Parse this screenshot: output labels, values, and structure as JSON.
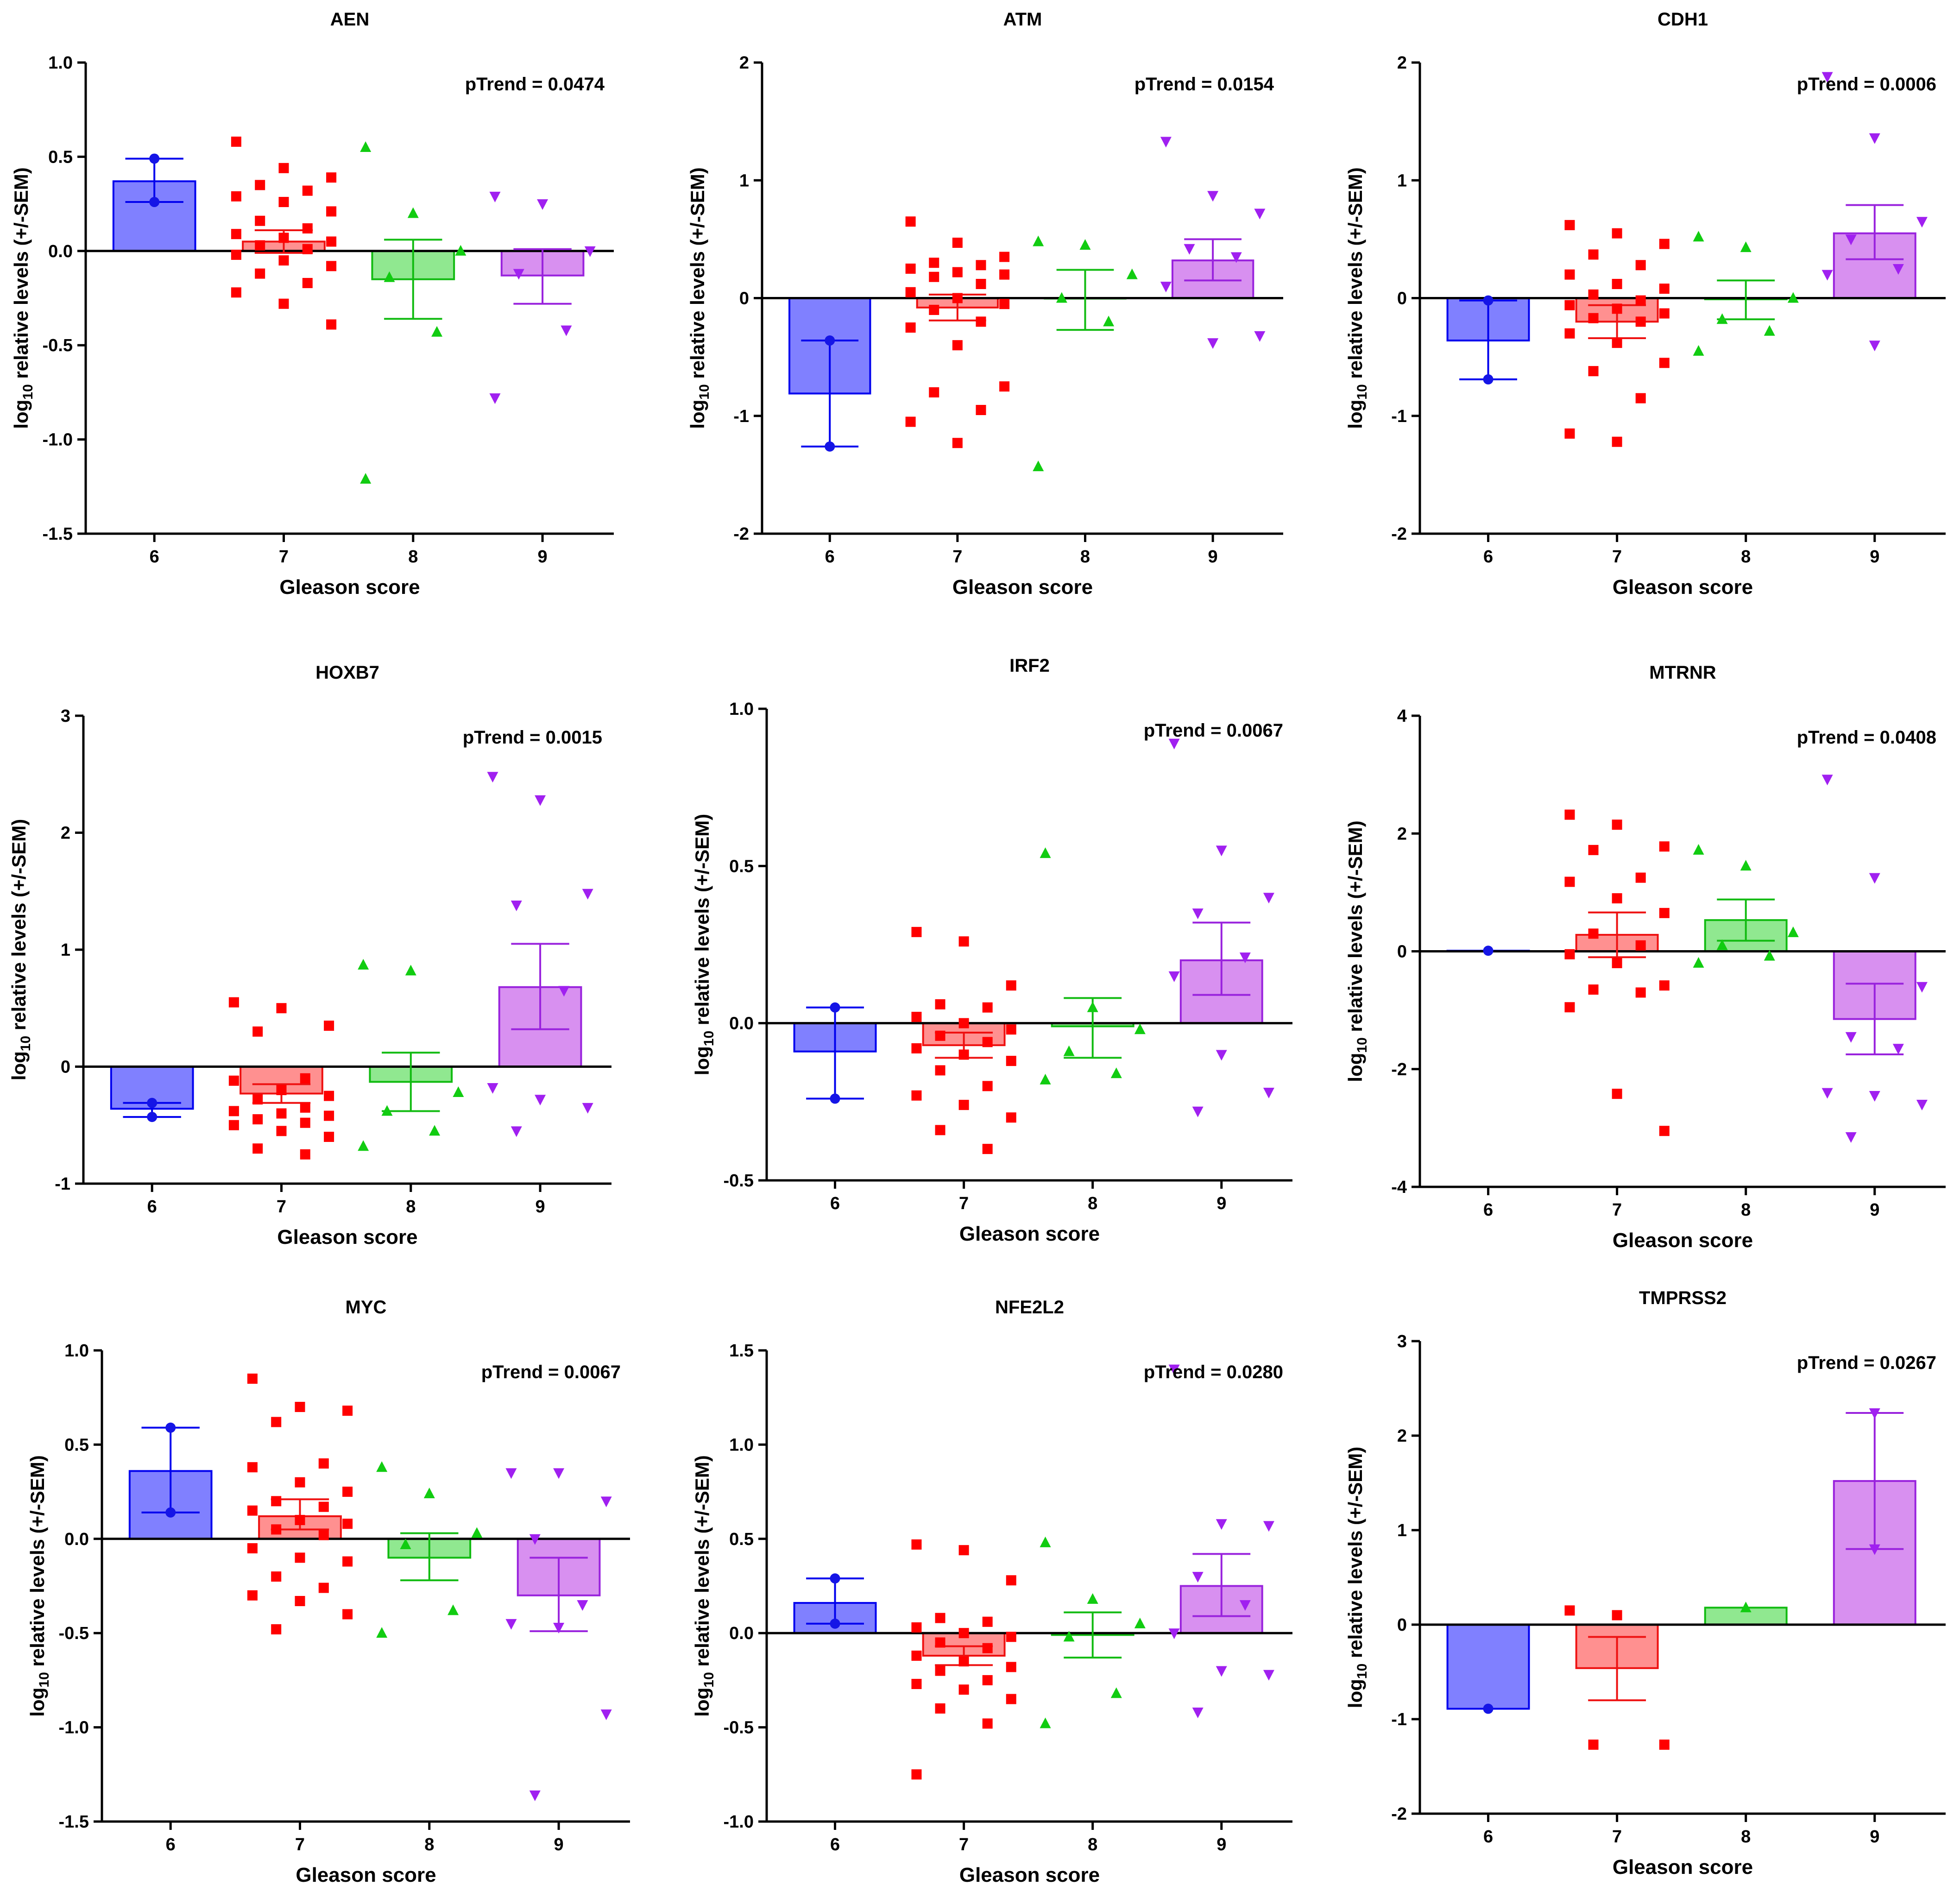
{
  "figure": {
    "layout": "3x3 grid"
  },
  "colors": {
    "6": {
      "bar": "#8080ff",
      "edge": "#0000ee",
      "pt": "#1515e6"
    },
    "7": {
      "bar": "#ff9090",
      "edge": "#ee1111",
      "pt": "#ff0000"
    },
    "8": {
      "bar": "#90e890",
      "edge": "#11bb11",
      "pt": "#11cc11"
    },
    "9": {
      "bar": "#d890f0",
      "edge": "#9922dd",
      "pt": "#a020f0"
    },
    "axis": "#000000"
  },
  "chart_data": [
    {
      "type": "bar",
      "title": "AEN",
      "ptrend": "pTrend = 0.0474",
      "xlabel": "Gleason score",
      "ylabel_main": "log",
      "ylabel_sub": "10",
      "ylabel_rest": " relative levels (+/-SEM)",
      "categories": [
        "6",
        "7",
        "8",
        "9"
      ],
      "ylim": [
        -1.5,
        1.0
      ],
      "yticks": [
        1.0,
        0.5,
        0.0,
        -0.5,
        -1.0,
        -1.5
      ],
      "ytick_labels": [
        "1.0",
        "0.5",
        "0.0",
        "-0.5",
        "-1.0",
        "-1.5"
      ],
      "means": [
        0.37,
        0.05,
        -0.15,
        -0.13
      ],
      "sem_upper": [
        0.49,
        0.11,
        0.06,
        0.01
      ],
      "sem_lower": [
        0.26,
        -0.01,
        -0.36,
        -0.28
      ],
      "points": [
        [
          0.49,
          0.26
        ],
        [
          0.58,
          0.44,
          0.39,
          0.35,
          0.32,
          0.29,
          0.26,
          0.21,
          0.16,
          0.12,
          0.09,
          0.07,
          0.05,
          0.03,
          0.01,
          -0.02,
          -0.05,
          -0.08,
          -0.12,
          -0.17,
          -0.22,
          -0.28,
          -0.39
        ],
        [
          0.55,
          0.2,
          0.0,
          -0.14,
          -0.43,
          -1.21
        ],
        [
          0.29,
          0.25,
          0.0,
          -0.12,
          -0.42,
          -0.78
        ]
      ]
    },
    {
      "type": "bar",
      "title": "ATM",
      "ptrend": "pTrend = 0.0154",
      "xlabel": "Gleason score",
      "ylabel_main": "log",
      "ylabel_sub": "10",
      "ylabel_rest": " relative levels (+/-SEM)",
      "categories": [
        "6",
        "7",
        "8",
        "9"
      ],
      "ylim": [
        -2,
        2
      ],
      "yticks": [
        2,
        1,
        0,
        -1,
        -2
      ],
      "ytick_labels": [
        "2",
        "1",
        "0",
        "-1",
        "-2"
      ],
      "means": [
        -0.81,
        -0.08,
        0.0,
        0.32
      ],
      "sem_upper": [
        -0.36,
        0.03,
        0.24,
        0.5
      ],
      "sem_lower": [
        -1.26,
        -0.19,
        -0.27,
        0.15
      ],
      "points": [
        [
          -0.36,
          -1.26
        ],
        [
          0.65,
          0.47,
          0.35,
          0.3,
          0.28,
          0.25,
          0.22,
          0.2,
          0.18,
          0.12,
          0.05,
          0.0,
          -0.05,
          -0.1,
          -0.2,
          -0.25,
          -0.4,
          -0.75,
          -0.8,
          -0.95,
          -1.05,
          -1.23
        ],
        [
          0.48,
          0.45,
          0.2,
          0.0,
          -0.2,
          -1.43
        ],
        [
          1.33,
          0.87,
          0.72,
          0.42,
          0.35,
          0.1,
          -0.38,
          -0.32
        ]
      ]
    },
    {
      "type": "bar",
      "title": "CDH1",
      "ptrend": "pTrend = 0.0006",
      "xlabel": "Gleason score",
      "ylabel_main": "log",
      "ylabel_sub": "10",
      "ylabel_rest": " relative levels (+/-SEM)",
      "categories": [
        "6",
        "7",
        "8",
        "9"
      ],
      "ylim": [
        -2,
        2
      ],
      "yticks": [
        2,
        1,
        0,
        -1,
        -2
      ],
      "ytick_labels": [
        "2",
        "1",
        "0",
        "-1",
        "-2"
      ],
      "means": [
        -0.36,
        -0.2,
        -0.01,
        0.55
      ],
      "sem_upper": [
        -0.02,
        -0.06,
        0.15,
        0.79
      ],
      "sem_lower": [
        -0.69,
        -0.34,
        -0.18,
        0.33
      ],
      "points": [
        [
          -0.02,
          -0.69
        ],
        [
          0.62,
          0.55,
          0.46,
          0.37,
          0.28,
          0.2,
          0.12,
          0.08,
          0.03,
          -0.02,
          -0.06,
          -0.09,
          -0.13,
          -0.17,
          -0.2,
          -0.3,
          -0.38,
          -0.55,
          -0.62,
          -0.85,
          -1.15,
          -1.22
        ],
        [
          0.52,
          0.43,
          0.0,
          -0.18,
          -0.28,
          -0.45
        ],
        [
          1.88,
          1.36,
          0.65,
          0.5,
          0.25,
          0.2,
          -0.4
        ]
      ]
    },
    {
      "type": "bar",
      "title": "HOXB7",
      "ptrend": "pTrend = 0.0015",
      "xlabel": "Gleason score",
      "ylabel_main": "log",
      "ylabel_sub": "10",
      "ylabel_rest": " relative levels (+/-SEM)",
      "categories": [
        "6",
        "7",
        "8",
        "9"
      ],
      "ylim": [
        -1,
        3
      ],
      "yticks": [
        3,
        2,
        1,
        0,
        -1
      ],
      "ytick_labels": [
        "3",
        "2",
        "1",
        "0",
        "-1"
      ],
      "means": [
        -0.36,
        -0.23,
        -0.13,
        0.68
      ],
      "sem_upper": [
        -0.31,
        -0.15,
        0.12,
        1.05
      ],
      "sem_lower": [
        -0.43,
        -0.31,
        -0.38,
        0.32
      ],
      "points": [
        [
          -0.31,
          -0.43
        ],
        [
          0.55,
          0.5,
          0.35,
          0.3,
          -0.1,
          -0.12,
          -0.2,
          -0.25,
          -0.28,
          -0.35,
          -0.38,
          -0.4,
          -0.42,
          -0.45,
          -0.48,
          -0.5,
          -0.55,
          -0.6,
          -0.7,
          -0.75
        ],
        [
          0.87,
          0.82,
          -0.22,
          -0.38,
          -0.55,
          -0.68
        ],
        [
          2.48,
          2.28,
          1.48,
          1.38,
          0.65,
          -0.18,
          -0.28,
          -0.35,
          -0.55
        ]
      ]
    },
    {
      "type": "bar",
      "title": "IRF2",
      "ptrend": "pTrend = 0.0067",
      "xlabel": "Gleason score",
      "ylabel_main": "log",
      "ylabel_sub": "10",
      "ylabel_rest": " relative levels (+/-SEM)",
      "categories": [
        "6",
        "7",
        "8",
        "9"
      ],
      "ylim": [
        -0.5,
        1.0
      ],
      "yticks": [
        1.0,
        0.5,
        0.0,
        -0.5
      ],
      "ytick_labels": [
        "1.0",
        "0.5",
        "0.0",
        "-0.5"
      ],
      "means": [
        -0.09,
        -0.07,
        -0.01,
        0.2
      ],
      "sem_upper": [
        0.05,
        -0.03,
        0.08,
        0.32
      ],
      "sem_lower": [
        -0.24,
        -0.11,
        -0.11,
        0.09
      ],
      "points": [
        [
          0.05,
          -0.24
        ],
        [
          0.29,
          0.26,
          0.12,
          0.06,
          0.05,
          0.02,
          0.0,
          -0.02,
          -0.04,
          -0.06,
          -0.08,
          -0.1,
          -0.12,
          -0.15,
          -0.2,
          -0.23,
          -0.26,
          -0.3,
          -0.34,
          -0.4
        ],
        [
          0.54,
          0.05,
          -0.02,
          -0.09,
          -0.16,
          -0.18
        ],
        [
          0.89,
          0.55,
          0.4,
          0.35,
          0.21,
          0.15,
          -0.1,
          -0.22,
          -0.28
        ]
      ]
    },
    {
      "type": "bar",
      "title": "MTRNR",
      "ptrend": "pTrend = 0.0408",
      "xlabel": "Gleason score",
      "ylabel_main": "log",
      "ylabel_sub": "10",
      "ylabel_rest": " relative levels (+/-SEM)",
      "categories": [
        "6",
        "7",
        "8",
        "9"
      ],
      "ylim": [
        -4,
        4
      ],
      "yticks": [
        4,
        2,
        0,
        -2,
        -4
      ],
      "ytick_labels": [
        "4",
        "2",
        "0",
        "-2",
        "-4"
      ],
      "means": [
        0.01,
        0.28,
        0.53,
        -1.15
      ],
      "sem_upper": [
        0.01,
        0.66,
        0.88,
        -0.55
      ],
      "sem_lower": [
        0.01,
        -0.1,
        0.18,
        -1.75
      ],
      "points": [
        [
          0.01
        ],
        [
          2.32,
          2.15,
          1.78,
          1.72,
          1.25,
          1.18,
          0.9,
          0.65,
          0.3,
          0.1,
          -0.05,
          -0.2,
          -0.58,
          -0.65,
          -0.7,
          -0.95,
          -2.42,
          -3.05
        ],
        [
          1.72,
          1.45,
          0.32,
          0.1,
          -0.08,
          -0.2
        ],
        [
          2.92,
          1.25,
          -0.6,
          -1.45,
          -1.65,
          -2.4,
          -2.45,
          -2.6,
          -3.15
        ]
      ]
    },
    {
      "type": "bar",
      "title": "MYC",
      "ptrend": "pTrend = 0.0067",
      "xlabel": "Gleason score",
      "ylabel_main": "log",
      "ylabel_sub": "10",
      "ylabel_rest": " relative levels (+/-SEM)",
      "categories": [
        "6",
        "7",
        "8",
        "9"
      ],
      "ylim": [
        -1.5,
        1.0
      ],
      "yticks": [
        1.0,
        0.5,
        0.0,
        -0.5,
        -1.0,
        -1.5
      ],
      "ytick_labels": [
        "1.0",
        "0.5",
        "0.0",
        "-0.5",
        "-1.0",
        "-1.5"
      ],
      "means": [
        0.36,
        0.12,
        -0.1,
        -0.3
      ],
      "sem_upper": [
        0.59,
        0.21,
        0.03,
        -0.1
      ],
      "sem_lower": [
        0.14,
        0.05,
        -0.22,
        -0.49
      ],
      "points": [
        [
          0.59,
          0.14
        ],
        [
          0.85,
          0.7,
          0.68,
          0.62,
          0.4,
          0.38,
          0.3,
          0.25,
          0.2,
          0.17,
          0.15,
          0.1,
          0.08,
          0.05,
          0.02,
          -0.05,
          -0.1,
          -0.12,
          -0.2,
          -0.26,
          -0.3,
          -0.33,
          -0.4,
          -0.48
        ],
        [
          0.38,
          0.24,
          0.03,
          -0.03,
          -0.38,
          -0.5
        ],
        [
          0.35,
          0.35,
          0.2,
          0.0,
          -0.35,
          -0.45,
          -0.47,
          -0.93,
          -1.36
        ]
      ]
    },
    {
      "type": "bar",
      "title": "NFE2L2",
      "ptrend": "pTrend = 0.0280",
      "xlabel": "Gleason score",
      "ylabel_main": "log",
      "ylabel_sub": "10",
      "ylabel_rest": " relative levels (+/-SEM)",
      "categories": [
        "6",
        "7",
        "8",
        "9"
      ],
      "ylim": [
        -1.0,
        1.5
      ],
      "yticks": [
        1.5,
        1.0,
        0.5,
        0.0,
        -0.5,
        -1.0
      ],
      "ytick_labels": [
        "1.5",
        "1.0",
        "0.5",
        "0.0",
        "-0.5",
        "-1.0"
      ],
      "means": [
        0.16,
        -0.12,
        -0.01,
        0.25
      ],
      "sem_upper": [
        0.29,
        -0.07,
        0.11,
        0.42
      ],
      "sem_lower": [
        0.05,
        -0.17,
        -0.13,
        0.09
      ],
      "points": [
        [
          0.29,
          0.05
        ],
        [
          0.47,
          0.44,
          0.28,
          0.08,
          0.06,
          0.03,
          0.0,
          -0.02,
          -0.05,
          -0.08,
          -0.12,
          -0.15,
          -0.18,
          -0.2,
          -0.25,
          -0.27,
          -0.3,
          -0.35,
          -0.4,
          -0.48,
          -0.75
        ],
        [
          0.48,
          0.18,
          0.05,
          -0.02,
          -0.32,
          -0.48
        ],
        [
          1.4,
          0.58,
          0.57,
          0.3,
          0.15,
          0.0,
          -0.2,
          -0.22,
          -0.42
        ]
      ]
    },
    {
      "type": "bar",
      "title": "TMPRSS2",
      "ptrend": "pTrend = 0.0267",
      "xlabel": "Gleason score",
      "ylabel_main": "log",
      "ylabel_sub": "10",
      "ylabel_rest": " relative levels (+/-SEM)",
      "categories": [
        "6",
        "7",
        "8",
        "9"
      ],
      "ylim": [
        -2,
        3
      ],
      "yticks": [
        3,
        2,
        1,
        0,
        -1,
        -2
      ],
      "ytick_labels": [
        "3",
        "2",
        "1",
        "0",
        "-1",
        "-2"
      ],
      "means": [
        -0.89,
        -0.46,
        0.18,
        1.52
      ],
      "sem_upper": [
        -0.89,
        -0.13,
        0.18,
        2.24
      ],
      "sem_lower": [
        -0.89,
        -0.8,
        0.18,
        0.8
      ],
      "points": [
        [
          -0.89
        ],
        [
          0.15,
          0.1,
          -1.27,
          -1.27
        ],
        [
          0.18
        ],
        [
          2.24,
          0.8
        ]
      ]
    }
  ]
}
